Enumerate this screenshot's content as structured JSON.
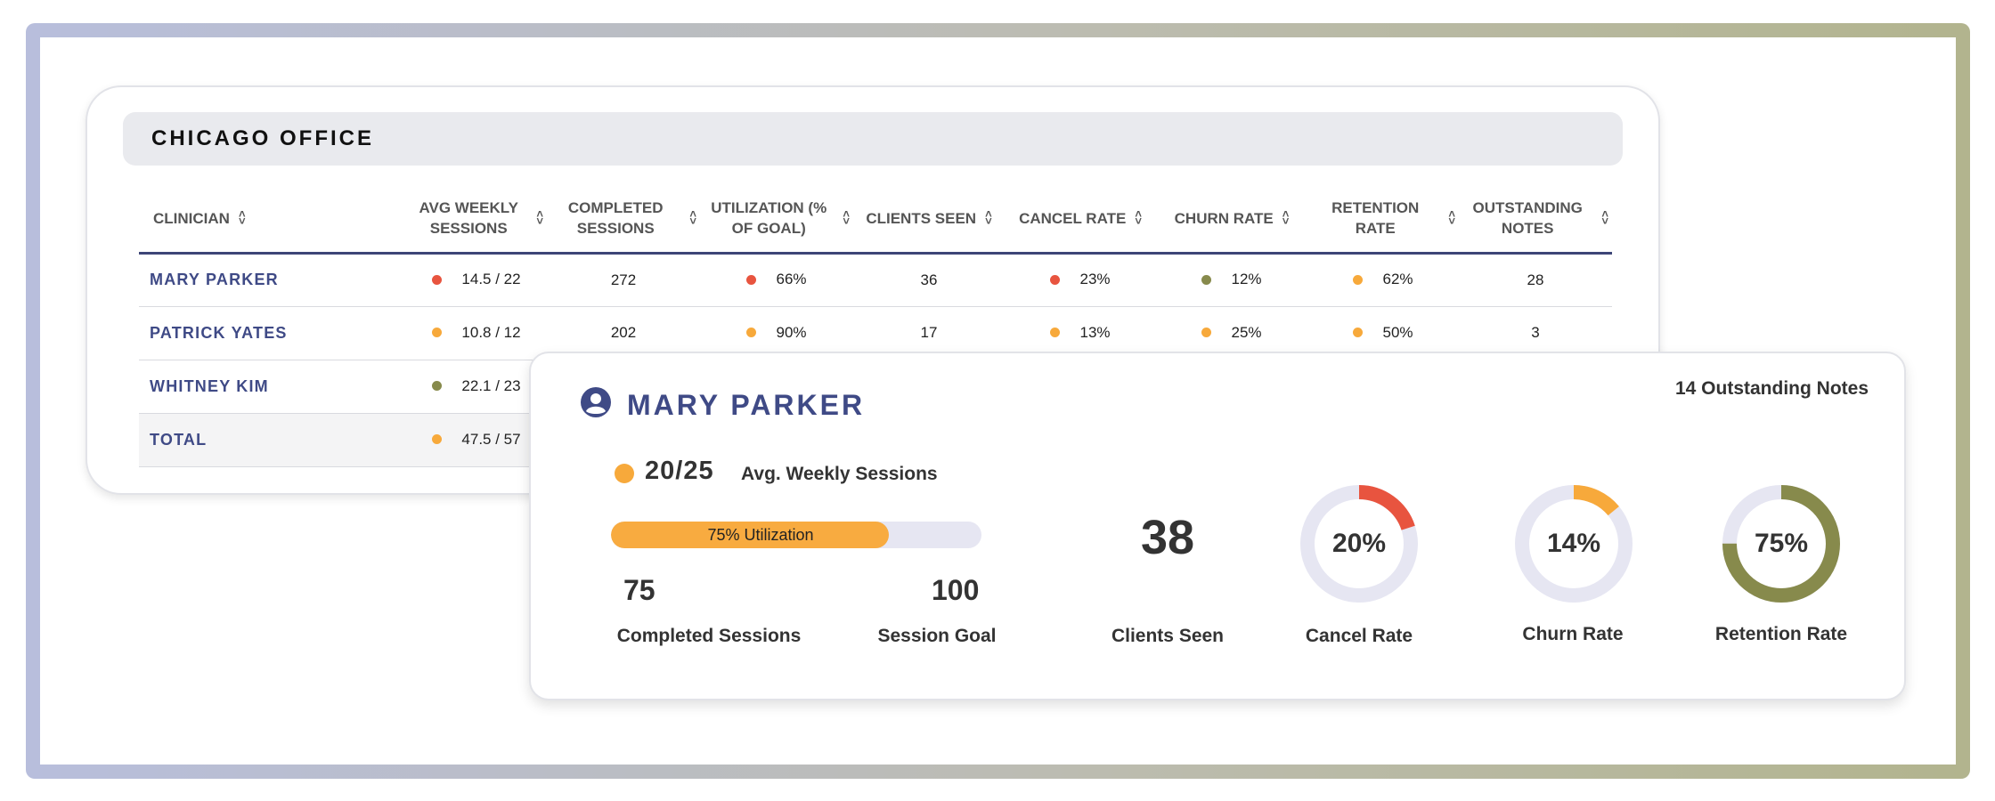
{
  "office": {
    "title": "CHICAGO OFFICE",
    "columns": [
      "CLINICIAN",
      "AVG WEEKLY SESSIONS",
      "COMPLETED SESSIONS",
      "UTILIZATION (% OF GOAL)",
      "CLIENTS SEEN",
      "CANCEL RATE",
      "CHURN RATE",
      "RETENTION RATE",
      "OUTSTANDING NOTES"
    ],
    "rows": [
      {
        "name": "MARY PARKER",
        "avg_weekly": "14.5 / 22",
        "avg_dot": "#e8543f",
        "completed": "272",
        "utilization": "66%",
        "util_dot": "#e8543f",
        "clients": "36",
        "cancel": "23%",
        "cancel_dot": "#e8543f",
        "churn": "12%",
        "churn_dot": "#878a4c",
        "retention": "62%",
        "retention_dot": "#f7a93b",
        "notes": "28"
      },
      {
        "name": "PATRICK YATES",
        "avg_weekly": "10.8 / 12",
        "avg_dot": "#f7a93b",
        "completed": "202",
        "utilization": "90%",
        "util_dot": "#f7a93b",
        "clients": "17",
        "cancel": "13%",
        "cancel_dot": "#f7a93b",
        "churn": "25%",
        "churn_dot": "#f7a93b",
        "retention": "50%",
        "retention_dot": "#f7a93b",
        "notes": "3"
      },
      {
        "name": "WHITNEY KIM",
        "avg_weekly": "22.1 / 23",
        "avg_dot": "#878a4c"
      }
    ],
    "total": {
      "name": "TOTAL",
      "avg_weekly": "47.5 / 57",
      "avg_dot": "#f7a93b"
    }
  },
  "detail": {
    "name": "MARY PARKER",
    "outstanding_notes": "14 Outstanding Notes",
    "avg_sessions_value": "20/25",
    "avg_sessions_label": "Avg. Weekly Sessions",
    "utilization_label": "75% Utilization",
    "utilization_fraction": 0.75,
    "completed_sessions": "75",
    "completed_sessions_label": "Completed Sessions",
    "session_goal": "100",
    "session_goal_label": "Session Goal",
    "clients_seen": "38",
    "clients_seen_label": "Clients Seen",
    "cancel_rate": "20%",
    "cancel_rate_label": "Cancel Rate",
    "cancel_fraction": 0.2,
    "churn_rate": "14%",
    "churn_rate_label": "Churn Rate",
    "churn_fraction": 0.14,
    "retention_rate": "75%",
    "retention_rate_label": "Retention  Rate",
    "retention_fraction": 0.75
  },
  "colors": {
    "red": "#e8543f",
    "orange": "#f7a93b",
    "olive": "#878a4c",
    "navy": "#3f4a86",
    "track": "#e6e6f2"
  }
}
